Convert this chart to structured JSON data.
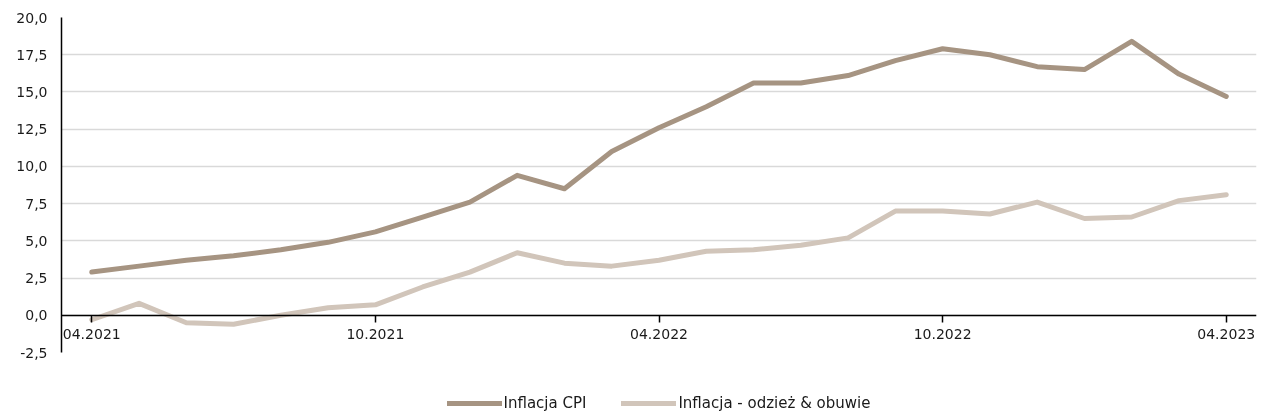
{
  "chart_data": {
    "type": "line",
    "categories": [
      "04.2021",
      null,
      null,
      null,
      null,
      null,
      "10.2021",
      null,
      null,
      null,
      null,
      null,
      "04.2022",
      null,
      null,
      null,
      null,
      null,
      "10.2022",
      null,
      null,
      null,
      null,
      null,
      "04.2023"
    ],
    "series": [
      {
        "name": "Inflacja CPI",
        "color": "#a69482",
        "values": [
          2.9,
          3.3,
          3.7,
          4.0,
          4.4,
          4.9,
          5.6,
          6.6,
          7.6,
          9.4,
          8.5,
          11.0,
          12.6,
          14.0,
          15.6,
          15.6,
          16.1,
          17.1,
          17.9,
          17.5,
          16.7,
          16.5,
          18.4,
          16.2,
          14.7
        ]
      },
      {
        "name": "Inflacja - odzież & obuwie",
        "color": "#d1c5ba",
        "values": [
          -0.3,
          0.8,
          -0.5,
          -0.6,
          0.0,
          0.5,
          0.7,
          1.9,
          2.9,
          4.2,
          3.5,
          3.3,
          3.7,
          4.3,
          4.4,
          4.7,
          5.2,
          7.0,
          7.0,
          6.8,
          7.6,
          6.5,
          6.6,
          7.7,
          8.1
        ]
      }
    ],
    "ylim": [
      -2.5,
      20
    ],
    "yticks": [
      {
        "value": -2.5,
        "label": "-2,5"
      },
      {
        "value": 0,
        "label": "0,0"
      },
      {
        "value": 2.5,
        "label": "2,5"
      },
      {
        "value": 5,
        "label": "5,0"
      },
      {
        "value": 7.5,
        "label": "7,5"
      },
      {
        "value": 10,
        "label": "10,0"
      },
      {
        "value": 12.5,
        "label": "12,5"
      },
      {
        "value": 15,
        "label": "15,0"
      },
      {
        "value": 17.5,
        "label": "17,5"
      },
      {
        "value": 20,
        "label": "20,0"
      }
    ],
    "grid": "y",
    "legend": "bottom",
    "line_style": "solid"
  }
}
